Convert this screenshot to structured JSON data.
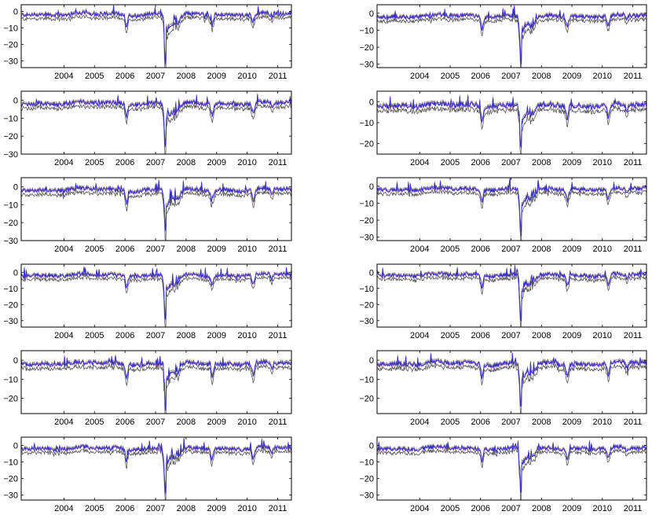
{
  "figure": {
    "layout": "6 rows x 2 columns grid of time-series panels"
  },
  "colors": {
    "band": "#555555",
    "series_primary": "#3333cc",
    "series_secondary": "#cc33cc",
    "axes": "#000000",
    "background": "#ffffff"
  },
  "chart_data": [
    {
      "type": "line",
      "xlim": [
        2003.1,
        2011.95
      ],
      "ylim": [
        -34,
        4
      ],
      "xticks": [
        2004,
        2005,
        2006,
        2007,
        2008,
        2009,
        2010,
        2011
      ],
      "xtick_labels": [
        "2004",
        "2005",
        "2006",
        "2007",
        "2008",
        "2009",
        "2010",
        "2011"
      ],
      "yticks": [
        0,
        -10,
        -20,
        -30
      ],
      "ytick_labels": [
        "0",
        "−10",
        "−20",
        "−30"
      ],
      "grid": false,
      "legend": "none",
      "min_value": -33,
      "series": [
        {
          "role": "band-lower"
        },
        {
          "role": "band-upper"
        },
        {
          "role": "primary"
        },
        {
          "role": "secondary"
        }
      ]
    },
    {
      "type": "line",
      "xlim": [
        2003.1,
        2011.95
      ],
      "ylim": [
        -32,
        5
      ],
      "xticks": [
        2004,
        2005,
        2006,
        2007,
        2008,
        2009,
        2010,
        2011
      ],
      "xtick_labels": [
        "2004",
        "2005",
        "2006",
        "2007",
        "2008",
        "2009",
        "2010",
        "2011"
      ],
      "yticks": [
        0,
        -10,
        -20,
        -30
      ],
      "ytick_labels": [
        "0",
        "−10",
        "−20",
        "−30"
      ],
      "grid": false,
      "legend": "none",
      "min_value": -30,
      "series": [
        {
          "role": "band-lower"
        },
        {
          "role": "band-upper"
        },
        {
          "role": "primary"
        },
        {
          "role": "secondary"
        }
      ]
    },
    {
      "type": "line",
      "xlim": [
        2003.1,
        2011.95
      ],
      "ylim": [
        -30,
        5
      ],
      "xticks": [
        2004,
        2005,
        2006,
        2007,
        2008,
        2009,
        2010,
        2011
      ],
      "xtick_labels": [
        "2004",
        "2005",
        "2006",
        "2007",
        "2008",
        "2009",
        "2010",
        "2011"
      ],
      "yticks": [
        0,
        -10,
        -20,
        -30
      ],
      "ytick_labels": [
        "0",
        "−10",
        "−20",
        "−30"
      ],
      "grid": false,
      "legend": "none",
      "min_value": -27,
      "series": [
        {
          "role": "band-lower"
        },
        {
          "role": "band-upper"
        },
        {
          "role": "primary"
        },
        {
          "role": "secondary"
        }
      ]
    },
    {
      "type": "line",
      "xlim": [
        2003.1,
        2011.95
      ],
      "ylim": [
        -25,
        5
      ],
      "xticks": [
        2004,
        2005,
        2006,
        2007,
        2008,
        2009,
        2010,
        2011
      ],
      "xtick_labels": [
        "2004",
        "2005",
        "2006",
        "2007",
        "2008",
        "2009",
        "2010",
        "2011"
      ],
      "yticks": [
        0,
        -10,
        -20
      ],
      "ytick_labels": [
        "0",
        "−10",
        "−20"
      ],
      "grid": false,
      "legend": "none",
      "min_value": -23,
      "series": [
        {
          "role": "band-lower"
        },
        {
          "role": "band-upper"
        },
        {
          "role": "primary"
        },
        {
          "role": "secondary"
        }
      ]
    },
    {
      "type": "line",
      "xlim": [
        2003.1,
        2011.95
      ],
      "ylim": [
        -30,
        5
      ],
      "xticks": [
        2004,
        2005,
        2006,
        2007,
        2008,
        2009,
        2010,
        2011
      ],
      "xtick_labels": [
        "2004",
        "2005",
        "2006",
        "2007",
        "2008",
        "2009",
        "2010",
        "2011"
      ],
      "yticks": [
        0,
        -10,
        -20,
        -30
      ],
      "ytick_labels": [
        "0",
        "−10",
        "−20",
        "−30"
      ],
      "grid": false,
      "legend": "none",
      "min_value": -27,
      "series": [
        {
          "role": "band-lower"
        },
        {
          "role": "band-upper"
        },
        {
          "role": "primary"
        },
        {
          "role": "secondary"
        }
      ]
    },
    {
      "type": "line",
      "xlim": [
        2003.1,
        2011.95
      ],
      "ylim": [
        -32,
        5
      ],
      "xticks": [
        2004,
        2005,
        2006,
        2007,
        2008,
        2009,
        2010,
        2011
      ],
      "xtick_labels": [
        "2004",
        "2005",
        "2006",
        "2007",
        "2008",
        "2009",
        "2010",
        "2011"
      ],
      "yticks": [
        0,
        -10,
        -20,
        -30
      ],
      "ytick_labels": [
        "0",
        "−10",
        "−20",
        "−30"
      ],
      "grid": false,
      "legend": "none",
      "min_value": -29,
      "series": [
        {
          "role": "band-lower"
        },
        {
          "role": "band-upper"
        },
        {
          "role": "primary"
        },
        {
          "role": "secondary"
        }
      ]
    },
    {
      "type": "line",
      "xlim": [
        2003.1,
        2011.95
      ],
      "ylim": [
        -34,
        5
      ],
      "xticks": [
        2004,
        2005,
        2006,
        2007,
        2008,
        2009,
        2010,
        2011
      ],
      "xtick_labels": [
        "2004",
        "2005",
        "2006",
        "2007",
        "2008",
        "2009",
        "2010",
        "2011"
      ],
      "yticks": [
        0,
        -10,
        -20,
        -30
      ],
      "ytick_labels": [
        "0",
        "−10",
        "−20",
        "−30"
      ],
      "grid": false,
      "legend": "none",
      "min_value": -30,
      "series": [
        {
          "role": "band-lower"
        },
        {
          "role": "band-upper"
        },
        {
          "role": "primary"
        },
        {
          "role": "secondary"
        }
      ]
    },
    {
      "type": "line",
      "xlim": [
        2003.1,
        2011.95
      ],
      "ylim": [
        -34,
        5
      ],
      "xticks": [
        2004,
        2005,
        2006,
        2007,
        2008,
        2009,
        2010,
        2011
      ],
      "xtick_labels": [
        "2004",
        "2005",
        "2006",
        "2007",
        "2008",
        "2009",
        "2010",
        "2011"
      ],
      "yticks": [
        0,
        -10,
        -20,
        -30
      ],
      "ytick_labels": [
        "0",
        "−10",
        "−20",
        "−30"
      ],
      "grid": false,
      "legend": "none",
      "min_value": -30,
      "series": [
        {
          "role": "band-lower"
        },
        {
          "role": "band-upper"
        },
        {
          "role": "primary"
        },
        {
          "role": "secondary"
        }
      ]
    },
    {
      "type": "line",
      "xlim": [
        2003.1,
        2011.95
      ],
      "ylim": [
        -28,
        5
      ],
      "xticks": [
        2004,
        2005,
        2006,
        2007,
        2008,
        2009,
        2010,
        2011
      ],
      "xtick_labels": [
        "2004",
        "2005",
        "2006",
        "2007",
        "2008",
        "2009",
        "2010",
        "2011"
      ],
      "yticks": [
        0,
        -10,
        -20
      ],
      "ytick_labels": [
        "0",
        "−10",
        "−20"
      ],
      "grid": false,
      "legend": "none",
      "min_value": -26,
      "series": [
        {
          "role": "band-lower"
        },
        {
          "role": "band-upper"
        },
        {
          "role": "primary"
        },
        {
          "role": "secondary"
        }
      ]
    },
    {
      "type": "line",
      "xlim": [
        2003.1,
        2011.95
      ],
      "ylim": [
        -28,
        5
      ],
      "xticks": [
        2004,
        2005,
        2006,
        2007,
        2008,
        2009,
        2010,
        2011
      ],
      "xtick_labels": [
        "2004",
        "2005",
        "2006",
        "2007",
        "2008",
        "2009",
        "2010",
        "2011"
      ],
      "yticks": [
        0,
        -10,
        -20
      ],
      "ytick_labels": [
        "0",
        "−10",
        "−20"
      ],
      "grid": false,
      "legend": "none",
      "min_value": -25,
      "series": [
        {
          "role": "band-lower"
        },
        {
          "role": "band-upper"
        },
        {
          "role": "primary"
        },
        {
          "role": "secondary"
        }
      ]
    },
    {
      "type": "line",
      "xlim": [
        2003.1,
        2011.95
      ],
      "ylim": [
        -33,
        5
      ],
      "xticks": [
        2004,
        2005,
        2006,
        2007,
        2008,
        2009,
        2010,
        2011
      ],
      "xtick_labels": [
        "2004",
        "2005",
        "2006",
        "2007",
        "2008",
        "2009",
        "2010",
        "2011"
      ],
      "yticks": [
        0,
        -10,
        -20,
        -30
      ],
      "ytick_labels": [
        "0",
        "−10",
        "−20",
        "−30"
      ],
      "grid": false,
      "legend": "none",
      "min_value": -29,
      "series": [
        {
          "role": "band-lower"
        },
        {
          "role": "band-upper"
        },
        {
          "role": "primary"
        },
        {
          "role": "secondary"
        }
      ]
    },
    {
      "type": "line",
      "xlim": [
        2003.1,
        2011.95
      ],
      "ylim": [
        -33,
        5
      ],
      "xticks": [
        2004,
        2005,
        2006,
        2007,
        2008,
        2009,
        2010,
        2011
      ],
      "xtick_labels": [
        "2004",
        "2005",
        "2006",
        "2007",
        "2008",
        "2009",
        "2010",
        "2011"
      ],
      "yticks": [
        0,
        -10,
        -20,
        -30
      ],
      "ytick_labels": [
        "0",
        "−10",
        "−20",
        "−30"
      ],
      "grid": false,
      "legend": "none",
      "min_value": -29,
      "series": [
        {
          "role": "band-lower"
        },
        {
          "role": "band-upper"
        },
        {
          "role": "primary"
        },
        {
          "role": "secondary"
        }
      ]
    }
  ]
}
